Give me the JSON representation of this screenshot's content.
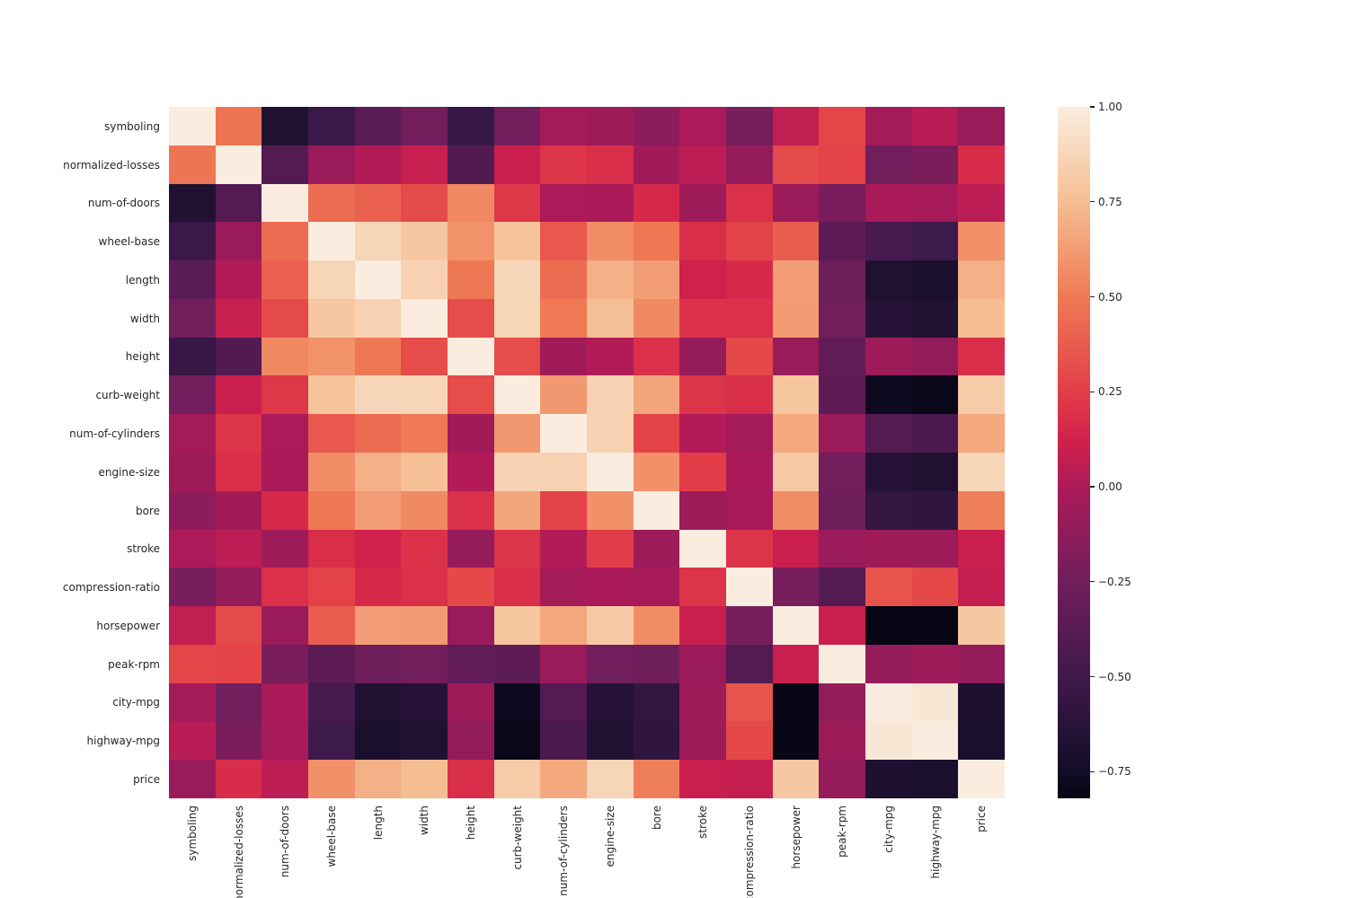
{
  "figure": {
    "background_color": "#ffffff",
    "text_color": "#262626"
  },
  "chart_data": {
    "type": "heatmap",
    "title": "",
    "xlabel": "",
    "ylabel": "",
    "description": "Correlation matrix heatmap of automobile features, seaborn rocket colormap",
    "labels": [
      "symboling",
      "normalized-losses",
      "num-of-doors",
      "wheel-base",
      "length",
      "width",
      "height",
      "curb-weight",
      "num-of-cylinders",
      "engine-size",
      "bore",
      "stroke",
      "compression-ratio",
      "horsepower",
      "peak-rpm",
      "city-mpg",
      "highway-mpg",
      "price"
    ],
    "matrix": [
      [
        1.0,
        0.48,
        -0.67,
        -0.53,
        -0.36,
        -0.24,
        -0.55,
        -0.24,
        -0.03,
        -0.06,
        -0.13,
        0.0,
        -0.22,
        0.07,
        0.28,
        -0.03,
        0.04,
        -0.08
      ],
      [
        0.48,
        1.0,
        -0.4,
        -0.07,
        0.02,
        0.09,
        -0.41,
        0.1,
        0.21,
        0.18,
        -0.04,
        0.05,
        -0.1,
        0.3,
        0.27,
        -0.25,
        -0.2,
        0.17
      ],
      [
        -0.67,
        -0.4,
        1.0,
        0.44,
        0.4,
        0.3,
        0.55,
        0.22,
        0.0,
        -0.01,
        0.16,
        -0.05,
        0.19,
        -0.07,
        -0.21,
        -0.01,
        -0.02,
        0.05
      ],
      [
        -0.53,
        -0.07,
        0.44,
        1.0,
        0.87,
        0.8,
        0.59,
        0.78,
        0.36,
        0.57,
        0.49,
        0.18,
        0.27,
        0.38,
        -0.35,
        -0.46,
        -0.51,
        0.58
      ],
      [
        -0.36,
        0.02,
        0.4,
        0.87,
        1.0,
        0.85,
        0.49,
        0.88,
        0.44,
        0.7,
        0.63,
        0.12,
        0.16,
        0.63,
        -0.26,
        -0.68,
        -0.71,
        0.7
      ],
      [
        -0.24,
        0.09,
        0.3,
        0.8,
        0.85,
        1.0,
        0.31,
        0.87,
        0.5,
        0.76,
        0.56,
        0.2,
        0.19,
        0.62,
        -0.25,
        -0.64,
        -0.68,
        0.75
      ],
      [
        -0.55,
        -0.41,
        0.55,
        0.59,
        0.49,
        0.31,
        1.0,
        0.31,
        -0.04,
        0.02,
        0.19,
        -0.09,
        0.29,
        -0.08,
        -0.33,
        -0.06,
        -0.11,
        0.18
      ],
      [
        -0.24,
        0.1,
        0.22,
        0.78,
        0.88,
        0.87,
        0.31,
        1.0,
        0.61,
        0.86,
        0.66,
        0.21,
        0.18,
        0.79,
        -0.35,
        -0.78,
        -0.8,
        0.82
      ],
      [
        -0.03,
        0.21,
        0.0,
        0.36,
        0.44,
        0.5,
        -0.04,
        0.61,
        1.0,
        0.85,
        0.27,
        0.02,
        -0.03,
        0.67,
        -0.08,
        -0.4,
        -0.45,
        0.67
      ],
      [
        -0.06,
        0.18,
        -0.01,
        0.57,
        0.7,
        0.76,
        0.02,
        0.86,
        0.85,
        1.0,
        0.58,
        0.24,
        -0.01,
        0.81,
        -0.25,
        -0.65,
        -0.68,
        0.87
      ],
      [
        -0.13,
        -0.04,
        0.16,
        0.49,
        0.63,
        0.56,
        0.19,
        0.66,
        0.27,
        0.58,
        1.0,
        -0.06,
        -0.02,
        0.57,
        -0.26,
        -0.58,
        -0.59,
        0.52
      ],
      [
        0.0,
        0.05,
        -0.05,
        0.18,
        0.12,
        0.2,
        -0.09,
        0.21,
        0.02,
        0.24,
        -0.06,
        1.0,
        0.21,
        0.1,
        -0.07,
        -0.05,
        -0.06,
        0.1
      ],
      [
        -0.22,
        -0.1,
        0.19,
        0.27,
        0.16,
        0.19,
        0.29,
        0.18,
        -0.03,
        -0.01,
        -0.02,
        0.21,
        1.0,
        -0.22,
        -0.4,
        0.34,
        0.29,
        0.08
      ],
      [
        0.07,
        0.3,
        -0.07,
        0.38,
        0.63,
        0.62,
        -0.08,
        0.79,
        0.67,
        0.81,
        0.57,
        0.1,
        -0.22,
        1.0,
        0.1,
        -0.82,
        -0.81,
        0.8
      ],
      [
        0.28,
        0.27,
        -0.21,
        -0.35,
        -0.26,
        -0.25,
        -0.33,
        -0.35,
        -0.08,
        -0.25,
        -0.26,
        -0.07,
        -0.4,
        0.1,
        1.0,
        -0.1,
        -0.06,
        -0.1
      ],
      [
        -0.03,
        -0.25,
        -0.01,
        -0.46,
        -0.68,
        -0.64,
        -0.06,
        -0.78,
        -0.4,
        -0.65,
        -0.58,
        -0.05,
        0.34,
        -0.82,
        -0.1,
        1.0,
        0.97,
        -0.69
      ],
      [
        0.04,
        -0.2,
        -0.02,
        -0.51,
        -0.71,
        -0.68,
        -0.11,
        -0.8,
        -0.45,
        -0.68,
        -0.59,
        -0.06,
        0.29,
        -0.81,
        -0.06,
        0.97,
        1.0,
        -0.71
      ],
      [
        -0.08,
        0.17,
        0.05,
        0.58,
        0.7,
        0.75,
        0.18,
        0.82,
        0.67,
        0.87,
        0.52,
        0.1,
        0.08,
        0.8,
        -0.1,
        -0.69,
        -0.71,
        1.0
      ]
    ],
    "colorbar": {
      "vmin": -0.82,
      "vmax": 1.0,
      "ticks": [
        {
          "label": "1.00",
          "value": 1.0
        },
        {
          "label": "0.75",
          "value": 0.75
        },
        {
          "label": "0.50",
          "value": 0.5
        },
        {
          "label": "0.25",
          "value": 0.25
        },
        {
          "label": "0.00",
          "value": 0.0
        },
        {
          "label": "−0.25",
          "value": -0.25
        },
        {
          "label": "−0.50",
          "value": -0.5
        },
        {
          "label": "−0.75",
          "value": -0.75
        }
      ]
    },
    "colormap": {
      "name": "rocket",
      "stops": [
        {
          "value": 1.0,
          "color": "#FAEDDF"
        },
        {
          "value": 0.75,
          "color": "#F5BE92"
        },
        {
          "value": 0.5,
          "color": "#EF7A55"
        },
        {
          "value": 0.25,
          "color": "#E23E47"
        },
        {
          "value": 0.12,
          "color": "#D0204C"
        },
        {
          "value": 0.0,
          "color": "#AC1A59"
        },
        {
          "value": -0.25,
          "color": "#701E5C"
        },
        {
          "value": -0.5,
          "color": "#40194C"
        },
        {
          "value": -0.75,
          "color": "#130D27"
        },
        {
          "value": -0.82,
          "color": "#060514"
        }
      ]
    },
    "layout": {
      "grid": false,
      "legend_position": "right-colorbar"
    }
  }
}
